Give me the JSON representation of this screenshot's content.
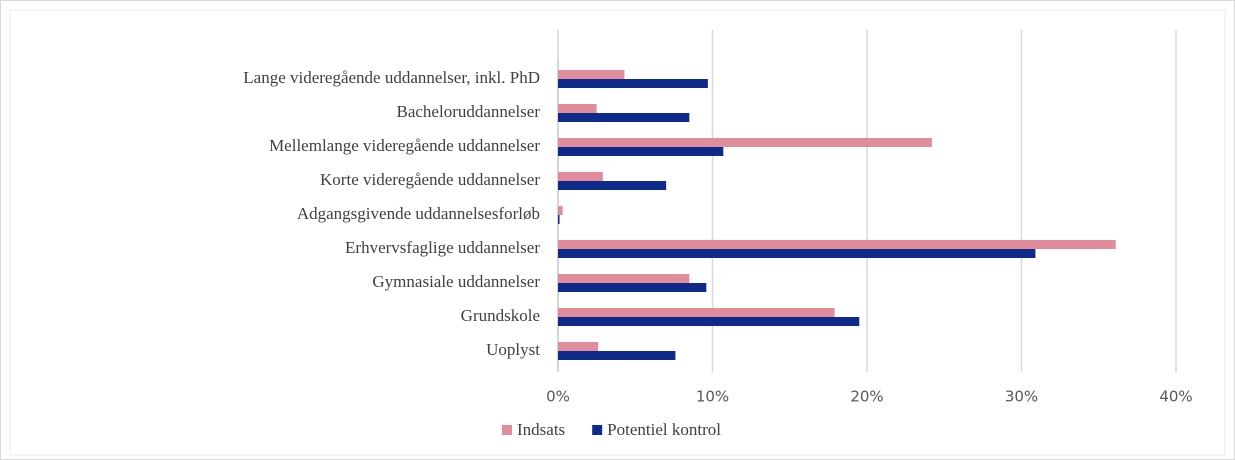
{
  "chart_data": {
    "type": "barh",
    "categories": [
      "Lange videregående uddannelser, inkl. PhD",
      "Bacheloruddannelser",
      "Mellemlange videregående uddannelser",
      "Korte videregående uddannelser",
      "Adgangsgivende uddannelsesforløb",
      "Erhvervsfaglige uddannelser",
      "Gymnasiale uddannelser",
      "Grundskole",
      "Uoplyst"
    ],
    "series": [
      {
        "name": "Indsats",
        "color": "#e08c9b",
        "values": [
          4.3,
          2.5,
          24.2,
          2.9,
          0.3,
          36.1,
          8.5,
          17.9,
          2.6
        ]
      },
      {
        "name": "Potentiel kontrol",
        "color": "#0e2b8c",
        "values": [
          9.7,
          8.5,
          10.7,
          7.0,
          0.1,
          30.9,
          9.6,
          19.5,
          7.6
        ]
      }
    ],
    "xlim": [
      0,
      40
    ],
    "xticks": [
      {
        "value": 0,
        "label": "0%"
      },
      {
        "value": 10,
        "label": "10%"
      },
      {
        "value": 20,
        "label": "20%"
      },
      {
        "value": 30,
        "label": "30%"
      },
      {
        "value": 40,
        "label": "40%"
      }
    ],
    "grid": true,
    "legend": "bottom"
  }
}
